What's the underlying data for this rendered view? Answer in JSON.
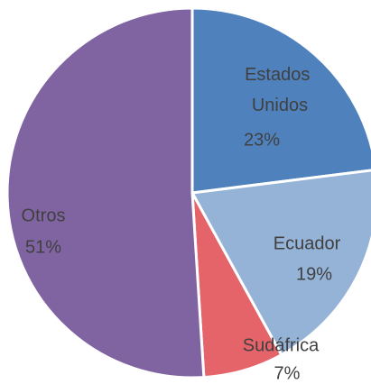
{
  "chart_data": {
    "type": "pie",
    "categories": [
      "Estados Unidos",
      "Ecuador",
      "Sudáfrica",
      "Otros"
    ],
    "values": [
      23,
      19,
      7,
      51
    ],
    "value_labels": [
      "23%",
      "19%",
      "7%",
      "51%"
    ],
    "colors": [
      "#4f81bd",
      "#95b3d7",
      "#e4646a",
      "#8064a2"
    ]
  }
}
